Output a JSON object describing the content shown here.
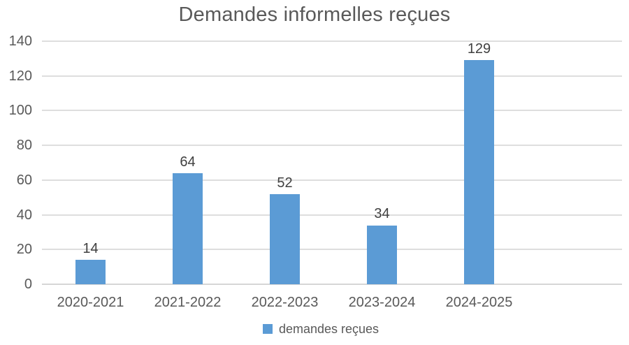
{
  "chart_data": {
    "type": "bar",
    "title": "Demandes informelles reçues",
    "categories": [
      "2020-2021",
      "2021-2022",
      "2022-2023",
      "2023-2024",
      "2024-2025"
    ],
    "series": [
      {
        "name": "demandes reçues",
        "values": [
          14,
          64,
          52,
          34,
          129
        ]
      }
    ],
    "xlabel": "",
    "ylabel": "",
    "ylim": [
      0,
      140
    ],
    "ytick_step": 20,
    "yticks": [
      0,
      20,
      40,
      60,
      80,
      100,
      120,
      140
    ],
    "grid": true,
    "show_data_labels": true,
    "legend_position": "bottom",
    "colors": {
      "bar": "#5B9BD5",
      "title_text": "#595959",
      "axis_text": "#595959",
      "data_label_text": "#404040",
      "gridline": "#DEDEDE",
      "axis_line": "#D6D6D6",
      "background": "#FFFFFF"
    }
  },
  "legend": {
    "swatch_color": "#5B9BD5",
    "label": "demandes reçues"
  }
}
